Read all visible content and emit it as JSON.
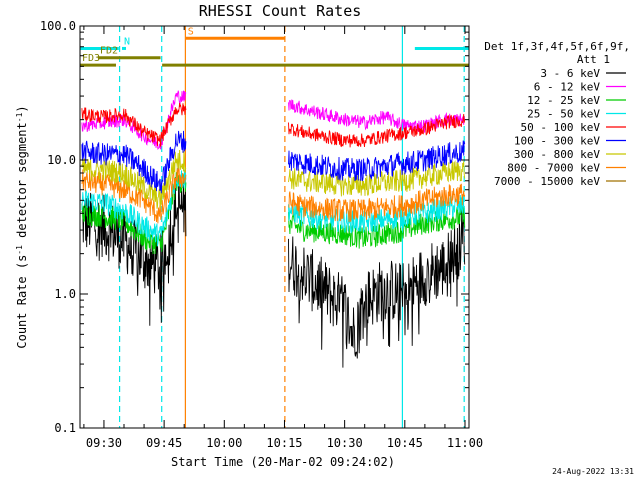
{
  "chart_data": {
    "type": "line",
    "title": "RHESSI Count Rates",
    "xlabel": "Start Time (20-Mar-02 09:24:02)",
    "ylabel": "Count Rate (s",
    "ylabel_sup1": "-1",
    "ylabel_mid": " detector segment",
    "ylabel_sup2": "-1",
    "ylabel_end": ")",
    "y_scale": "log",
    "ylim": [
      0.1,
      100.0
    ],
    "x_range_minutes": [
      -5.97,
      91.0
    ],
    "x_ticks": [
      {
        "label": "09:30",
        "value": 0
      },
      {
        "label": "09:45",
        "value": 15
      },
      {
        "label": "10:00",
        "value": 30
      },
      {
        "label": "10:15",
        "value": 45
      },
      {
        "label": "10:30",
        "value": 60
      },
      {
        "label": "10:45",
        "value": 75
      },
      {
        "label": "11:00",
        "value": 90
      }
    ],
    "y_ticks": [
      {
        "label": "100.0",
        "value": 100.0
      },
      {
        "label": "10.0",
        "value": 10.0
      },
      {
        "label": "1.0",
        "value": 1.0
      },
      {
        "label": "0.1",
        "value": 0.1
      }
    ],
    "legend": {
      "placement": "right",
      "header_line1": "Det 1f,3f,4f,5f,6f,9f,",
      "header_line2": "Att 1"
    },
    "series": [
      {
        "name": "3 - 6 keV",
        "color": "#000000",
        "x": [
          -5.5,
          0,
          5,
          10,
          14,
          15,
          18,
          35,
          40,
          50,
          60,
          62,
          65,
          70,
          75,
          80,
          85,
          88,
          90
        ],
        "y": [
          3.5,
          3.2,
          2.5,
          1.8,
          1.6,
          1.9,
          4.5,
          3.5,
          2.6,
          1.4,
          0.8,
          0.5,
          0.9,
          1.1,
          1.0,
          1.4,
          1.6,
          2.2,
          2.8
        ]
      },
      {
        "name": "6 - 12 keV",
        "color": "#ff00ff",
        "x": [
          -5.5,
          0,
          5,
          10,
          14,
          15,
          18,
          35,
          40,
          50,
          60,
          65,
          70,
          75,
          80,
          85,
          90
        ],
        "y": [
          18,
          19,
          20,
          15,
          13,
          16,
          30,
          26,
          30,
          24,
          20,
          19,
          21,
          18,
          18,
          20,
          20
        ]
      },
      {
        "name": "12 - 25 keV",
        "color": "#00cc00",
        "x": [
          -5.5,
          0,
          5,
          10,
          14,
          15,
          18,
          35,
          40,
          50,
          60,
          65,
          70,
          75,
          80,
          85,
          90
        ],
        "y": [
          4.0,
          3.8,
          3.5,
          2.6,
          2.3,
          2.8,
          7.0,
          5.5,
          4.0,
          3.0,
          2.8,
          2.6,
          2.8,
          3.0,
          3.4,
          3.6,
          3.8
        ]
      },
      {
        "name": "25 - 50 keV",
        "color": "#00e8e8",
        "x": [
          -5.5,
          0,
          5,
          10,
          14,
          15,
          18,
          35,
          40,
          50,
          60,
          65,
          70,
          75,
          80,
          85,
          90
        ],
        "y": [
          5.0,
          4.8,
          4.2,
          3.2,
          2.7,
          3.2,
          7.5,
          5.8,
          5.0,
          3.8,
          3.5,
          3.4,
          3.6,
          3.8,
          4.0,
          4.4,
          4.6
        ]
      },
      {
        "name": "50 - 100 keV",
        "color": "#ff0000",
        "x": [
          -5.5,
          0,
          5,
          10,
          14,
          15,
          18,
          35,
          40,
          50,
          60,
          65,
          70,
          75,
          80,
          85,
          90
        ],
        "y": [
          22,
          21,
          22,
          16,
          14,
          16,
          24,
          22,
          20,
          16,
          14,
          14,
          15,
          16,
          17,
          19,
          20
        ]
      },
      {
        "name": "100 - 300 keV",
        "color": "#0000ff",
        "x": [
          -5.5,
          0,
          5,
          10,
          14,
          15,
          18,
          35,
          40,
          50,
          60,
          65,
          70,
          75,
          80,
          85,
          90
        ],
        "y": [
          11.5,
          11,
          11,
          8.5,
          6.5,
          7.5,
          14,
          12,
          11,
          9.5,
          8.5,
          8.5,
          9.0,
          9.5,
          10,
          11,
          11.5
        ]
      },
      {
        "name": "300 - 800 keV",
        "color": "#c8c800",
        "x": [
          -5.5,
          0,
          5,
          10,
          14,
          15,
          18,
          35,
          40,
          50,
          60,
          65,
          70,
          75,
          80,
          85,
          90
        ],
        "y": [
          8.5,
          8.5,
          8.0,
          6.2,
          5.0,
          6.0,
          10,
          8.5,
          8.0,
          7.0,
          6.5,
          6.5,
          6.8,
          7.0,
          7.5,
          8.0,
          8.5
        ]
      },
      {
        "name": "800 - 7000 keV",
        "color": "#ff8000",
        "x": [
          -5.5,
          0,
          5,
          10,
          14,
          15,
          18,
          35,
          40,
          50,
          60,
          65,
          70,
          75,
          80,
          85,
          90
        ],
        "y": [
          7.0,
          6.6,
          6.0,
          5.0,
          3.8,
          4.5,
          7.5,
          6.0,
          5.5,
          4.5,
          4.2,
          4.2,
          4.4,
          4.6,
          5.0,
          5.4,
          5.6
        ]
      },
      {
        "name": "7000 - 15000 keV",
        "color": "#a07000",
        "x": [],
        "y": []
      }
    ],
    "annotations": {
      "bars": [
        {
          "label": "",
          "color": "#00e8e8",
          "x_start": -5.97,
          "x_end": 3.7,
          "y_value": 68
        },
        {
          "label": "N",
          "color": "#00e8e8",
          "x_start": 4.5,
          "x_end": 5.5,
          "y_value": 68
        },
        {
          "label": "",
          "color": "#00e8e8",
          "x_start": 77.5,
          "x_end": 91.0,
          "y_value": 68
        },
        {
          "label": "S",
          "color": "#ff8000",
          "x_start": 20.4,
          "x_end": 45.2,
          "y_value": 81
        },
        {
          "label": "FD2",
          "color": "#808000",
          "x_start": -1.5,
          "x_end": 14.1,
          "y_value": 58
        },
        {
          "label": "FD3",
          "color": "#808000",
          "x_start": -5.97,
          "x_end": 3.0,
          "y_value": 51
        },
        {
          "label": "",
          "color": "#808000",
          "x_start": 14.5,
          "x_end": 91.0,
          "y_value": 51
        }
      ],
      "vlines": [
        {
          "x": 3.9,
          "color": "#00e8e8",
          "dashed": true
        },
        {
          "x": 14.4,
          "color": "#00e8e8",
          "dashed": true
        },
        {
          "x": 20.3,
          "color": "#ff8000",
          "dashed": false
        },
        {
          "x": 45.1,
          "color": "#ff8000",
          "dashed": true
        },
        {
          "x": 74.4,
          "color": "#00e8e8",
          "dashed": false
        },
        {
          "x": 89.8,
          "color": "#00e8e8",
          "dashed": true
        }
      ],
      "data_gap": [
        20.5,
        46.0
      ]
    }
  },
  "timestamp": "24-Aug-2022 13:31"
}
